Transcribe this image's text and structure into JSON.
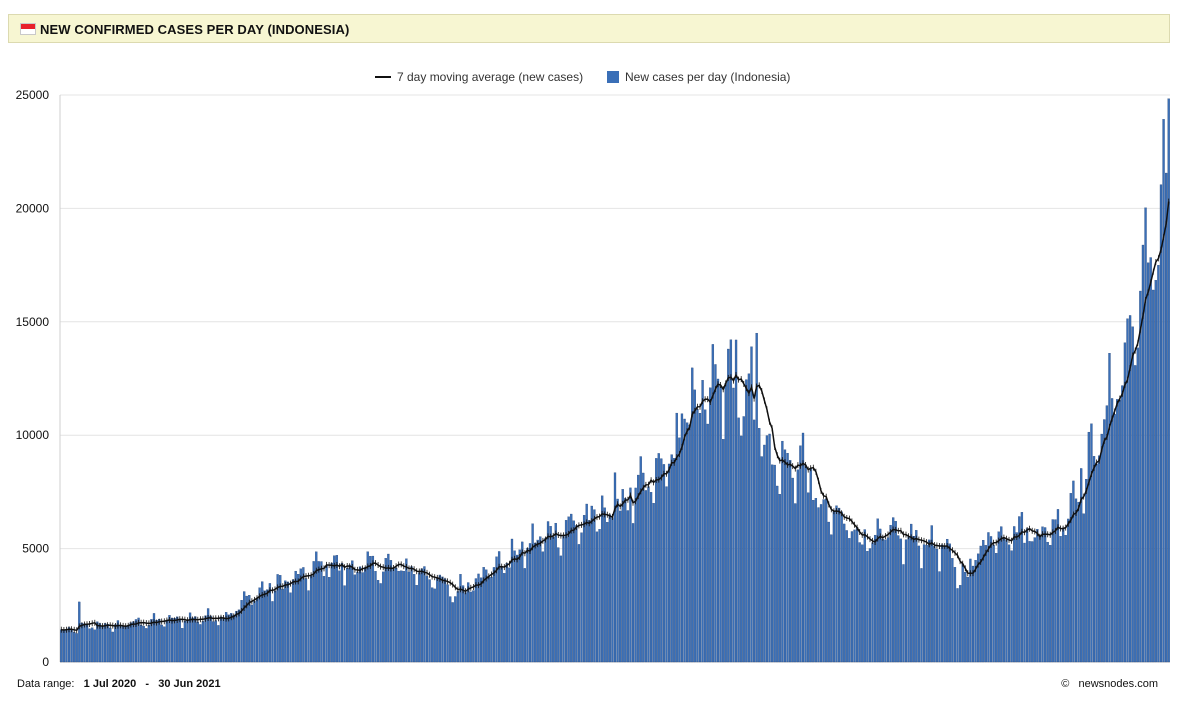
{
  "header": {
    "title": "NEW CONFIRMED CASES PER DAY (INDONESIA)",
    "flag_icon": "indonesia-flag-icon"
  },
  "footer": {
    "range_label": "Data range:",
    "start": "1 Jul 2020",
    "separator": "-",
    "end": "30 Jun 2021",
    "copyright_symbol": "©",
    "source": "newsnodes.com"
  },
  "colors": {
    "bar": "#3a6fb7",
    "bar_edge": "#1f3f73",
    "line": "#111111",
    "grid": "#e4e4e4",
    "header_bg": "#f7f6d2"
  },
  "chart_data": {
    "type": "bar",
    "title": "NEW CONFIRMED CASES PER DAY (INDONESIA)",
    "xlabel": "",
    "ylabel": "",
    "ylim": [
      0,
      25000
    ],
    "yticks": [
      0,
      5000,
      10000,
      15000,
      20000,
      25000
    ],
    "grid": true,
    "legend_position": "top-center",
    "legend": [
      {
        "key": "line",
        "label": "7 day moving average (new cases)"
      },
      {
        "key": "bar",
        "label": "New cases per day (Indonesia)"
      }
    ],
    "x_start": "2020-07-01",
    "x_end": "2021-06-30",
    "n_days": 365,
    "series": [
      {
        "name": "New cases per day (Indonesia)",
        "kind": "bar"
      },
      {
        "name": "7 day moving average (new cases)",
        "kind": "line",
        "window": 7
      }
    ],
    "keyframes": [
      [
        0,
        1300
      ],
      [
        8,
        1500
      ],
      [
        14,
        1650
      ],
      [
        20,
        1550
      ],
      [
        30,
        1750
      ],
      [
        40,
        1800
      ],
      [
        50,
        1900
      ],
      [
        60,
        2000
      ],
      [
        65,
        2100
      ],
      [
        75,
        3000
      ],
      [
        85,
        3400
      ],
      [
        95,
        3800
      ],
      [
        100,
        4200
      ],
      [
        104,
        4400
      ],
      [
        110,
        4100
      ],
      [
        125,
        4200
      ],
      [
        140,
        4000
      ],
      [
        148,
        3400
      ],
      [
        152,
        3000
      ],
      [
        160,
        3700
      ],
      [
        170,
        4300
      ],
      [
        180,
        5000
      ],
      [
        190,
        5700
      ],
      [
        200,
        6100
      ],
      [
        210,
        6400
      ],
      [
        220,
        7200
      ],
      [
        230,
        7800
      ],
      [
        238,
        9400
      ],
      [
        246,
        11600
      ],
      [
        256,
        12000
      ],
      [
        262,
        12400
      ],
      [
        266,
        11800
      ],
      [
        272,
        10400
      ],
      [
        276,
        8700
      ],
      [
        282,
        8600
      ],
      [
        287,
        8900
      ],
      [
        290,
        8300
      ],
      [
        294,
        6800
      ],
      [
        302,
        6200
      ],
      [
        310,
        5600
      ],
      [
        318,
        5500
      ],
      [
        325,
        5400
      ],
      [
        335,
        5300
      ],
      [
        340,
        5200
      ],
      [
        344,
        4800
      ],
      [
        348,
        3800
      ],
      [
        352,
        4000
      ],
      [
        356,
        4900
      ],
      [
        360,
        5600
      ],
      [
        365,
        5700
      ],
      [
        369,
        5900
      ],
      [
        375,
        5800
      ],
      [
        382,
        5700
      ],
      [
        388,
        6200
      ],
      [
        394,
        7600
      ],
      [
        400,
        9000
      ],
      [
        406,
        11000
      ],
      [
        412,
        13000
      ],
      [
        418,
        15500
      ],
      [
        424,
        18400
      ],
      [
        428,
        20500
      ],
      [
        430,
        21100
      ]
    ],
    "notable_values": {
      "peak_first_wave": 14500,
      "last_value": 24836
    }
  }
}
